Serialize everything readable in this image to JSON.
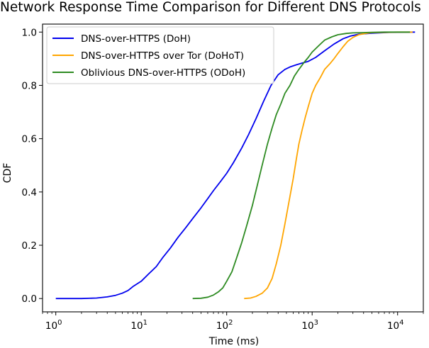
{
  "chart_data": {
    "type": "line",
    "title": "Network Response Time Comparison for Different DNS Protocols",
    "xlabel": "Time (ms)",
    "ylabel": "CDF",
    "xscale": "log",
    "xlim": [
      0.7,
      20000
    ],
    "ylim": [
      -0.05,
      1.03
    ],
    "xticks": [
      {
        "value": 1,
        "base": "10",
        "exp": "0"
      },
      {
        "value": 10,
        "base": "10",
        "exp": "1"
      },
      {
        "value": 100,
        "base": "10",
        "exp": "2"
      },
      {
        "value": 1000,
        "base": "10",
        "exp": "3"
      },
      {
        "value": 10000,
        "base": "10",
        "exp": "4"
      }
    ],
    "yticks": [
      {
        "value": 0.0,
        "label": "0.0"
      },
      {
        "value": 0.2,
        "label": "0.2"
      },
      {
        "value": 0.4,
        "label": "0.4"
      },
      {
        "value": 0.6,
        "label": "0.6"
      },
      {
        "value": 0.8,
        "label": "0.8"
      },
      {
        "value": 1.0,
        "label": "1.0"
      }
    ],
    "grid": false,
    "legend_position": "top-left",
    "series": [
      {
        "name": "DNS-over-HTTPS (DoH)",
        "color": "#0000ee",
        "x": [
          1,
          2,
          3,
          4,
          5,
          6,
          7,
          8,
          10,
          12,
          15,
          18,
          22,
          27,
          33,
          40,
          50,
          60,
          70,
          85,
          100,
          120,
          150,
          180,
          220,
          270,
          330,
          400,
          480,
          560,
          650,
          750,
          900,
          1100,
          1400,
          1800,
          2300,
          2800,
          3500,
          5000,
          8000,
          16000
        ],
        "y": [
          0,
          0,
          0.002,
          0.006,
          0.012,
          0.02,
          0.03,
          0.045,
          0.065,
          0.09,
          0.12,
          0.155,
          0.19,
          0.23,
          0.265,
          0.3,
          0.34,
          0.375,
          0.405,
          0.44,
          0.47,
          0.51,
          0.565,
          0.615,
          0.675,
          0.74,
          0.8,
          0.84,
          0.86,
          0.87,
          0.877,
          0.883,
          0.89,
          0.905,
          0.93,
          0.955,
          0.975,
          0.985,
          0.992,
          0.996,
          0.999,
          1.0
        ]
      },
      {
        "name": "DNS-over-HTTPS over Tor (DoHoT)",
        "color": "#ffa500",
        "x": [
          160,
          190,
          220,
          260,
          300,
          340,
          380,
          430,
          480,
          540,
          600,
          650,
          700,
          760,
          830,
          900,
          1000,
          1100,
          1250,
          1400,
          1600,
          1800,
          2000,
          2300,
          2600,
          3000,
          3500,
          4200,
          5000,
          7000,
          10000,
          15000
        ],
        "y": [
          0,
          0.002,
          0.008,
          0.02,
          0.04,
          0.075,
          0.13,
          0.2,
          0.28,
          0.37,
          0.45,
          0.52,
          0.58,
          0.63,
          0.68,
          0.72,
          0.77,
          0.8,
          0.83,
          0.86,
          0.88,
          0.9,
          0.92,
          0.945,
          0.965,
          0.98,
          0.99,
          0.995,
          0.998,
          0.999,
          1.0,
          1.0
        ]
      },
      {
        "name": "Oblivious DNS-over-HTTPS (ODoH)",
        "color": "#2e8b22",
        "x": [
          40,
          50,
          60,
          70,
          80,
          90,
          100,
          115,
          130,
          150,
          170,
          200,
          230,
          260,
          300,
          340,
          380,
          430,
          480,
          550,
          620,
          700,
          800,
          900,
          1000,
          1200,
          1400,
          1700,
          2000,
          2500,
          3000,
          4000,
          5000,
          7000,
          10000,
          14000
        ],
        "y": [
          0,
          0.001,
          0.005,
          0.013,
          0.025,
          0.04,
          0.065,
          0.1,
          0.15,
          0.21,
          0.27,
          0.35,
          0.43,
          0.5,
          0.58,
          0.64,
          0.69,
          0.73,
          0.77,
          0.8,
          0.835,
          0.86,
          0.885,
          0.905,
          0.925,
          0.95,
          0.97,
          0.982,
          0.99,
          0.995,
          0.997,
          0.998,
          0.999,
          1.0,
          1.0,
          1.0
        ]
      }
    ]
  }
}
